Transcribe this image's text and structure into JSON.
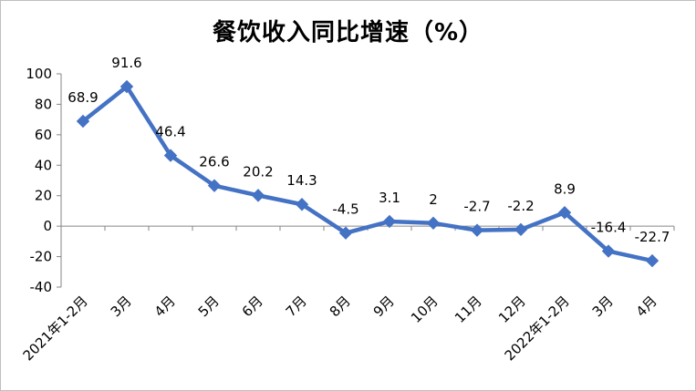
{
  "chart_data": {
    "type": "line",
    "title": "餐饮收入同比增速（%）",
    "xlabel": "",
    "ylabel": "",
    "categories": [
      "2021年1-2月",
      "3月",
      "4月",
      "5月",
      "6月",
      "7月",
      "8月",
      "9月",
      "10月",
      "11月",
      "12月",
      "2022年1-2月",
      "3月",
      "4月"
    ],
    "series": [
      {
        "values": [
          68.9,
          91.6,
          46.4,
          26.6,
          20.2,
          14.3,
          -4.5,
          3.1,
          2,
          -2.7,
          -2.2,
          8.9,
          -16.4,
          -22.7
        ],
        "labels": [
          "68.9",
          "91.6",
          "46.4",
          "26.6",
          "20.2",
          "14.3",
          "-4.5",
          "3.1",
          "2",
          "-2.7",
          "-2.2",
          "8.9",
          "-16.4",
          "-22.7"
        ],
        "color": "#4472C4",
        "marker": "diamond"
      }
    ],
    "ylim": [
      -40,
      100
    ],
    "yticks": [
      "100",
      "80",
      "60",
      "40",
      "20",
      "0",
      "-20",
      "-40"
    ],
    "ytick_values": [
      100,
      80,
      60,
      40,
      20,
      0,
      -20,
      -40
    ],
    "grid": false,
    "legend": "none"
  }
}
